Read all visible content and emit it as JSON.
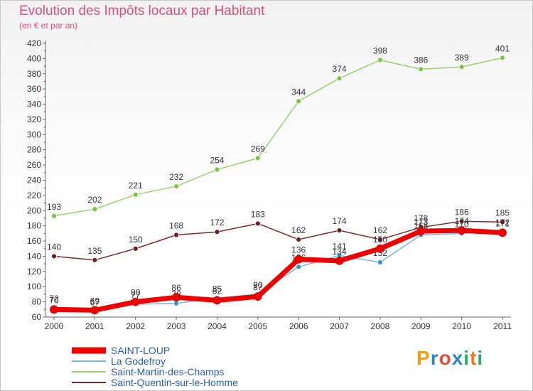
{
  "title": "Evolution des Impôts locaux par Habitant",
  "subtitle": "(en € et par an)",
  "logo": {
    "letters": [
      "P",
      "r",
      "o",
      "x",
      "i",
      "t",
      "i"
    ],
    "colors": [
      "#f39c12",
      "#2e86c1",
      "#e74c3c",
      "#2e86c1",
      "#27ae60",
      "#e67e22",
      "#27ae60"
    ]
  },
  "chart_data": {
    "type": "line",
    "x": [
      2000,
      2001,
      2002,
      2003,
      2004,
      2005,
      2006,
      2007,
      2008,
      2009,
      2010,
      2011
    ],
    "ylim": [
      60,
      420
    ],
    "yticks": [
      60,
      80,
      100,
      120,
      140,
      160,
      180,
      200,
      220,
      240,
      260,
      280,
      300,
      320,
      340,
      360,
      380,
      400,
      420
    ],
    "grid": false,
    "legend_position": "bottom-left",
    "series": [
      {
        "name": "Saint-Martin-des-Champs",
        "color": "#9bd16f",
        "marker": "#7fc241",
        "width": 1.5,
        "values": [
          193,
          202,
          221,
          232,
          254,
          269,
          344,
          374,
          398,
          386,
          389,
          401
        ]
      },
      {
        "name": "Saint-Quentin-sur-le-Homme",
        "color": "#7a2a2a",
        "marker": "#6b1f1f",
        "width": 1.5,
        "values": [
          140,
          135,
          150,
          168,
          172,
          183,
          162,
          174,
          162,
          178,
          186,
          185
        ]
      },
      {
        "name": "La Godefroy",
        "color": "#7fb2dd",
        "marker": "#3d8fd1",
        "width": 1.5,
        "values": [
          72,
          67,
          77,
          78,
          85,
          90,
          126,
          141,
          132,
          168,
          170,
          172
        ]
      },
      {
        "name": "SAINT-LOUP",
        "color": "#ee0000",
        "marker": "#ee0000",
        "width": 7,
        "values": [
          70,
          69,
          80,
          86,
          82,
          87,
          136,
          134,
          150,
          173,
          174,
          171
        ]
      }
    ],
    "legend": [
      "SAINT-LOUP",
      "La Godefroy",
      "Saint-Martin-des-Champs",
      "Saint-Quentin-sur-le-Homme"
    ]
  }
}
